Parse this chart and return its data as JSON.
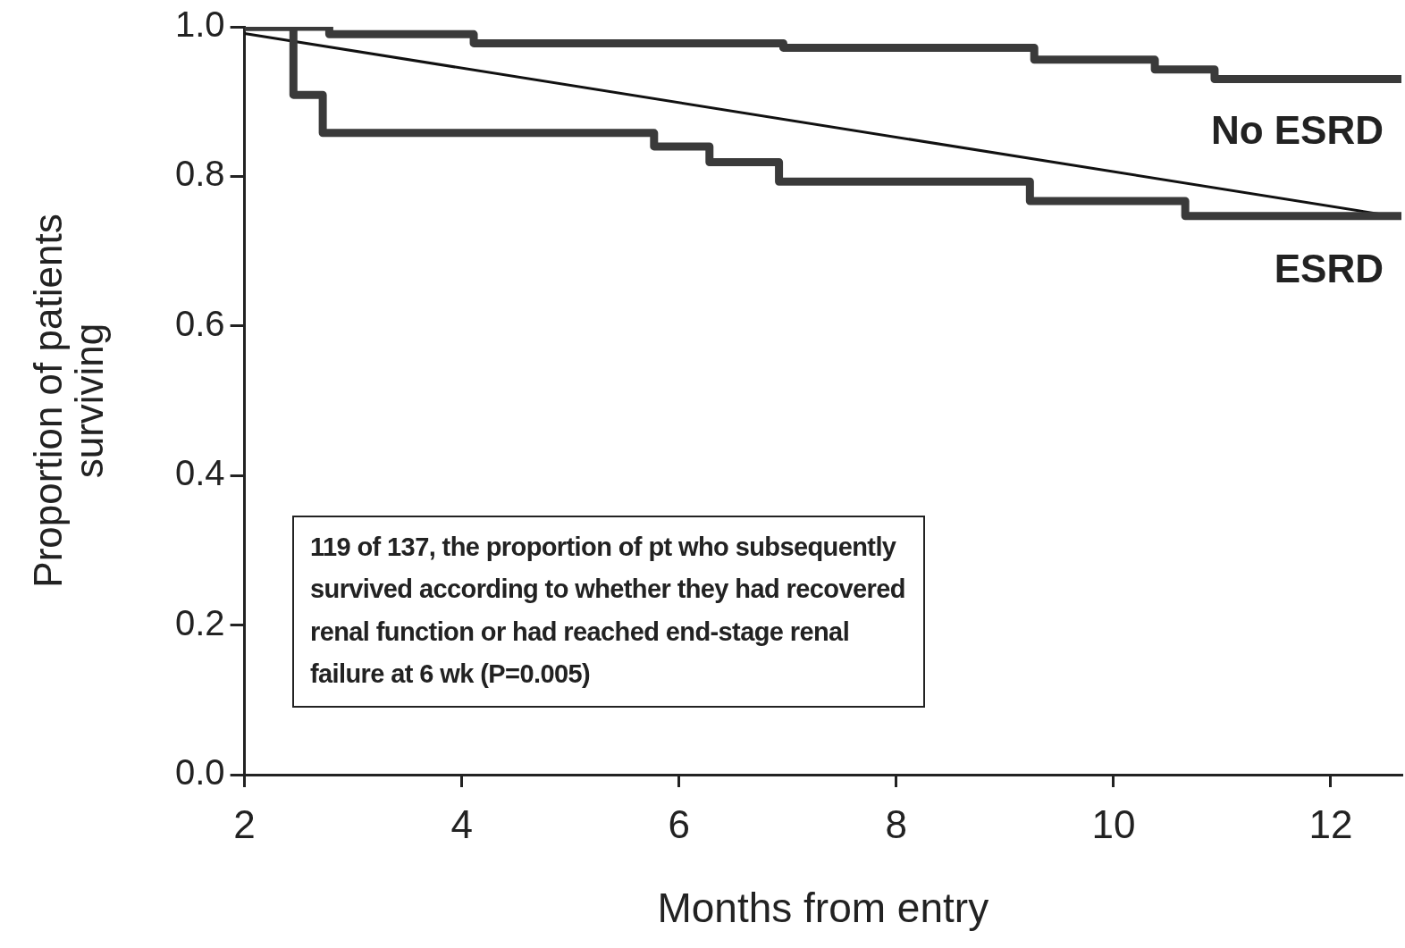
{
  "chart_data": {
    "type": "line",
    "xlabel": "Months from entry",
    "ylabel": "Proportion of patients surviving",
    "xlim": [
      2,
      12.65
    ],
    "xticks": [
      2,
      4,
      6,
      8,
      10,
      12
    ],
    "ylim": [
      0,
      1
    ],
    "yticks": [
      {
        "value": 0,
        "label": "0.0"
      },
      0.2,
      0.4,
      0.6,
      0.8,
      {
        "value": 1,
        "label": "1.0"
      }
    ],
    "grid": false,
    "legend": false,
    "marker": "none",
    "series": [
      {
        "name": "No ESRD",
        "type": "step",
        "color": "#3a3a3a",
        "x": [
          2,
          2.78,
          4.11,
          6.96,
          9.27,
          10.38,
          10.93,
          12.65
        ],
        "values": [
          1.0,
          0.99,
          0.978,
          0.972,
          0.956,
          0.943,
          0.93,
          0.93
        ]
      },
      {
        "name": "ESRD",
        "type": "step",
        "color": "#3a3a3a",
        "x": [
          2,
          2.45,
          2.72,
          5.77,
          6.28,
          6.92,
          9.23,
          10.66,
          12.65
        ],
        "values": [
          1.0,
          0.909,
          0.858,
          0.84,
          0.819,
          0.793,
          0.767,
          0.747,
          0.747
        ]
      },
      {
        "type": "line",
        "color": "#111111",
        "x": [
          2,
          12.65
        ],
        "values": [
          0.991,
          0.745
        ]
      }
    ],
    "annotations": [
      "119 of 137, the proportion of pt who subsequently survived according to whether they had recovered renal function or had reached end-stage renal failure at 6 wk (P=0.005)"
    ]
  }
}
